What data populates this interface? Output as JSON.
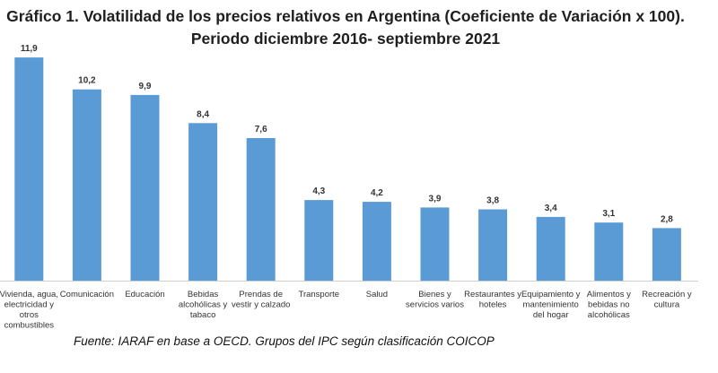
{
  "chart_data": {
    "type": "bar",
    "title_lines": [
      "Gráfico 1. Volatilidad de los precios relativos en Argentina (Coeficiente de Variación x 100).",
      "Periodo diciembre 2016- septiembre 2021"
    ],
    "categories": [
      [
        "Vivienda, agua,",
        "electricidad y",
        "otros",
        "combustibles"
      ],
      [
        "Comunicación"
      ],
      [
        "Educación"
      ],
      [
        "Bebidas",
        "alcohólicas y",
        "tabaco"
      ],
      [
        "Prendas de",
        "vestir y calzado"
      ],
      [
        "Transporte"
      ],
      [
        "Salud"
      ],
      [
        "Bienes y",
        "servicios varios"
      ],
      [
        "Restaurantes y",
        "hoteles"
      ],
      [
        "Equipamiento y",
        "mantenimiento",
        "del hogar"
      ],
      [
        "Alimentos y",
        "bebidas no",
        "alcohólicas"
      ],
      [
        "Recreación y",
        "cultura"
      ]
    ],
    "values": [
      11.9,
      10.2,
      9.9,
      8.4,
      7.6,
      4.3,
      4.2,
      3.9,
      3.8,
      3.4,
      3.1,
      2.8
    ],
    "value_labels": [
      "11,9",
      "10,2",
      "9,9",
      "8,4",
      "7,6",
      "4,3",
      "4,2",
      "3,9",
      "3,8",
      "3,4",
      "3,1",
      "2,8"
    ],
    "xlabel": "",
    "ylabel": "",
    "ylim": [
      0,
      12
    ],
    "grid": false,
    "legend": "none",
    "bar_color": "#5b9bd5",
    "source": "Fuente: IARAF en base a OECD. Grupos del IPC según clasificación COICOP"
  }
}
